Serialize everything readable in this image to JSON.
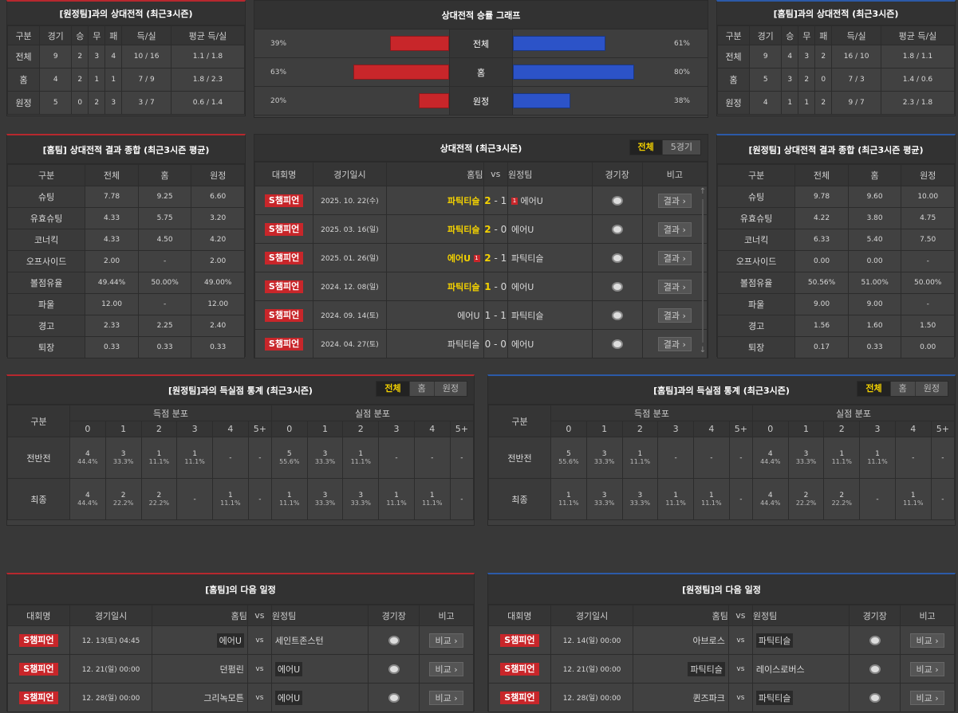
{
  "h2h_away": {
    "title": "[원정팀]과의 상대전적 (최근3시즌)",
    "headers": [
      "구분",
      "경기",
      "승",
      "무",
      "패",
      "득/실",
      "평균 득/실"
    ],
    "rows": [
      [
        "전체",
        "9",
        "2",
        "3",
        "4",
        "10 / 16",
        "1.1 / 1.8"
      ],
      [
        "홈",
        "4",
        "2",
        "1",
        "1",
        "7 / 9",
        "1.8 / 2.3"
      ],
      [
        "원정",
        "5",
        "0",
        "2",
        "3",
        "3 / 7",
        "0.6 / 1.4"
      ]
    ]
  },
  "graph": {
    "title": "상대전적 승률 그래프",
    "rows": [
      {
        "label": "전체",
        "left": "39%",
        "right": "61%",
        "lv": 39,
        "rv": 61
      },
      {
        "label": "홈",
        "left": "63%",
        "right": "80%",
        "lv": 63,
        "rv": 80
      },
      {
        "label": "원정",
        "left": "20%",
        "right": "38%",
        "lv": 20,
        "rv": 38
      }
    ],
    "colors": {
      "left": "#c8262a",
      "right": "#2c53c8"
    }
  },
  "h2h_home": {
    "title": "[홈팀]과의 상대전적 (최근3시즌)",
    "headers": [
      "구분",
      "경기",
      "승",
      "무",
      "패",
      "득/실",
      "평균 득/실"
    ],
    "rows": [
      [
        "전체",
        "9",
        "4",
        "3",
        "2",
        "16 / 10",
        "1.8 / 1.1"
      ],
      [
        "홈",
        "5",
        "3",
        "2",
        "0",
        "7 / 3",
        "1.4 / 0.6"
      ],
      [
        "원정",
        "4",
        "1",
        "1",
        "2",
        "9 / 7",
        "2.3 / 1.8"
      ]
    ]
  },
  "summary_home": {
    "title": "[홈팀] 상대전적 결과 종합 (최근3시즌 평균)",
    "headers": [
      "구분",
      "전체",
      "홈",
      "원정"
    ],
    "rows": [
      [
        "슈팅",
        "7.78",
        "9.25",
        "6.60"
      ],
      [
        "유효슈팅",
        "4.33",
        "5.75",
        "3.20"
      ],
      [
        "코너킥",
        "4.33",
        "4.50",
        "4.20"
      ],
      [
        "오프사이드",
        "2.00",
        "-",
        "2.00"
      ],
      [
        "볼점유율",
        "49.44%",
        "50.00%",
        "49.00%"
      ],
      [
        "파울",
        "12.00",
        "-",
        "12.00"
      ],
      [
        "경고",
        "2.33",
        "2.25",
        "2.40"
      ],
      [
        "퇴장",
        "0.33",
        "0.33",
        "0.33"
      ]
    ]
  },
  "recent": {
    "title": "상대전적 (최근3시즌)",
    "tabs": [
      "전체",
      "5경기"
    ],
    "headers": {
      "league": "대회명",
      "date": "경기일시",
      "home": "홈팀",
      "vs": "vs",
      "away": "원정팀",
      "venue": "경기장",
      "note": "비고"
    },
    "result_label": "결과",
    "rows": [
      {
        "league": "S챔피언",
        "date": "2025. 10. 22(수)",
        "home": "파틱티슬",
        "hs": "2",
        "as": "1",
        "away": "에어U",
        "home_win": true,
        "away_win": false,
        "away_card": "1",
        "home_card": ""
      },
      {
        "league": "S챔피언",
        "date": "2025. 03. 16(일)",
        "home": "파틱티슬",
        "hs": "2",
        "as": "0",
        "away": "에어U",
        "home_win": true,
        "away_win": false,
        "away_card": "",
        "home_card": ""
      },
      {
        "league": "S챔피언",
        "date": "2025. 01. 26(일)",
        "home": "에어U",
        "hs": "2",
        "as": "1",
        "away": "파틱티슬",
        "home_win": true,
        "away_win": false,
        "away_card": "",
        "home_card": "1"
      },
      {
        "league": "S챔피언",
        "date": "2024. 12. 08(일)",
        "home": "파틱티슬",
        "hs": "1",
        "as": "0",
        "away": "에어U",
        "home_win": true,
        "away_win": false,
        "away_card": "",
        "home_card": ""
      },
      {
        "league": "S챔피언",
        "date": "2024. 09. 14(토)",
        "home": "에어U",
        "hs": "1",
        "as": "1",
        "away": "파틱티슬",
        "home_win": false,
        "away_win": false,
        "away_card": "",
        "home_card": ""
      },
      {
        "league": "S챔피언",
        "date": "2024. 04. 27(토)",
        "home": "파틱티슬",
        "hs": "0",
        "as": "0",
        "away": "에어U",
        "home_win": false,
        "away_win": false,
        "away_card": "",
        "home_card": ""
      }
    ]
  },
  "summary_away": {
    "title": "[원정팀] 상대전적 결과 종합 (최근3시즌 평균)",
    "headers": [
      "구분",
      "전체",
      "홈",
      "원정"
    ],
    "rows": [
      [
        "슈팅",
        "9.78",
        "9.60",
        "10.00"
      ],
      [
        "유효슈팅",
        "4.22",
        "3.80",
        "4.75"
      ],
      [
        "코너킥",
        "6.33",
        "5.40",
        "7.50"
      ],
      [
        "오프사이드",
        "0.00",
        "0.00",
        "-"
      ],
      [
        "볼점유율",
        "50.56%",
        "51.00%",
        "50.00%"
      ],
      [
        "파울",
        "9.00",
        "9.00",
        "-"
      ],
      [
        "경고",
        "1.56",
        "1.60",
        "1.50"
      ],
      [
        "퇴장",
        "0.17",
        "0.33",
        "0.00"
      ]
    ]
  },
  "goals_left": {
    "title": "[원정팀]과의 득실점 통계 (최근3시즌)",
    "tabs": [
      "전체",
      "홈",
      "원정"
    ],
    "h_label": "구분",
    "scored": "득점 분포",
    "conceded": "실점 분포",
    "cols": [
      "0",
      "1",
      "2",
      "3",
      "4",
      "5+"
    ],
    "rows": [
      {
        "label": "전반전",
        "s": [
          [
            "4",
            "44.4%"
          ],
          [
            "3",
            "33.3%"
          ],
          [
            "1",
            "11.1%"
          ],
          [
            "1",
            "11.1%"
          ],
          [
            "-",
            ""
          ],
          [
            "-",
            ""
          ]
        ],
        "c": [
          [
            "5",
            "55.6%"
          ],
          [
            "3",
            "33.3%"
          ],
          [
            "1",
            "11.1%"
          ],
          [
            "-",
            ""
          ],
          [
            "-",
            ""
          ],
          [
            "-",
            ""
          ]
        ]
      },
      {
        "label": "최종",
        "s": [
          [
            "4",
            "44.4%"
          ],
          [
            "2",
            "22.2%"
          ],
          [
            "2",
            "22.2%"
          ],
          [
            "-",
            ""
          ],
          [
            "1",
            "11.1%"
          ],
          [
            "-",
            ""
          ]
        ],
        "c": [
          [
            "1",
            "11.1%"
          ],
          [
            "3",
            "33.3%"
          ],
          [
            "3",
            "33.3%"
          ],
          [
            "1",
            "11.1%"
          ],
          [
            "1",
            "11.1%"
          ],
          [
            "-",
            ""
          ]
        ]
      }
    ]
  },
  "goals_right": {
    "title": "[홈팀]과의 득실점 통계 (최근3시즌)",
    "tabs": [
      "전체",
      "홈",
      "원정"
    ],
    "h_label": "구분",
    "scored": "득점 분포",
    "conceded": "실점 분포",
    "cols": [
      "0",
      "1",
      "2",
      "3",
      "4",
      "5+"
    ],
    "rows": [
      {
        "label": "전반전",
        "s": [
          [
            "5",
            "55.6%"
          ],
          [
            "3",
            "33.3%"
          ],
          [
            "1",
            "11.1%"
          ],
          [
            "-",
            ""
          ],
          [
            "-",
            ""
          ],
          [
            "-",
            ""
          ]
        ],
        "c": [
          [
            "4",
            "44.4%"
          ],
          [
            "3",
            "33.3%"
          ],
          [
            "1",
            "11.1%"
          ],
          [
            "1",
            "11.1%"
          ],
          [
            "-",
            ""
          ],
          [
            "-",
            ""
          ]
        ]
      },
      {
        "label": "최종",
        "s": [
          [
            "1",
            "11.1%"
          ],
          [
            "3",
            "33.3%"
          ],
          [
            "3",
            "33.3%"
          ],
          [
            "1",
            "11.1%"
          ],
          [
            "1",
            "11.1%"
          ],
          [
            "-",
            ""
          ]
        ],
        "c": [
          [
            "4",
            "44.4%"
          ],
          [
            "2",
            "22.2%"
          ],
          [
            "2",
            "22.2%"
          ],
          [
            "-",
            ""
          ],
          [
            "1",
            "11.1%"
          ],
          [
            "-",
            ""
          ]
        ]
      }
    ]
  },
  "next_home": {
    "title": "[홈팀]의 다음 일정",
    "headers": {
      "league": "대회명",
      "date": "경기일시",
      "home": "홈팀",
      "vs": "vs",
      "away": "원정팀",
      "venue": "경기장",
      "note": "비고"
    },
    "btn": "비교",
    "rows": [
      {
        "league": "S챔피언",
        "date": "12. 13(토) 04:45",
        "home": "에어U",
        "away": "세인트존스턴",
        "hl": "home"
      },
      {
        "league": "S챔피언",
        "date": "12. 21(일) 00:00",
        "home": "던펌린",
        "away": "에어U",
        "hl": "away"
      },
      {
        "league": "S챔피언",
        "date": "12. 28(일) 00:00",
        "home": "그리녹모튼",
        "away": "에어U",
        "hl": "away"
      }
    ]
  },
  "next_away": {
    "title": "[원정팀]의 다음 일정",
    "headers": {
      "league": "대회명",
      "date": "경기일시",
      "home": "홈팀",
      "vs": "vs",
      "away": "원정팀",
      "venue": "경기장",
      "note": "비고"
    },
    "btn": "비교",
    "rows": [
      {
        "league": "S챔피언",
        "date": "12. 14(일) 00:00",
        "home": "아브로스",
        "away": "파틱티슬",
        "hl": "away"
      },
      {
        "league": "S챔피언",
        "date": "12. 21(일) 00:00",
        "home": "파틱티슬",
        "away": "레이스로버스",
        "hl": "home"
      },
      {
        "league": "S챔피언",
        "date": "12. 28(일) 00:00",
        "home": "퀸즈파크",
        "away": "파틱티슬",
        "hl": "away"
      }
    ]
  }
}
